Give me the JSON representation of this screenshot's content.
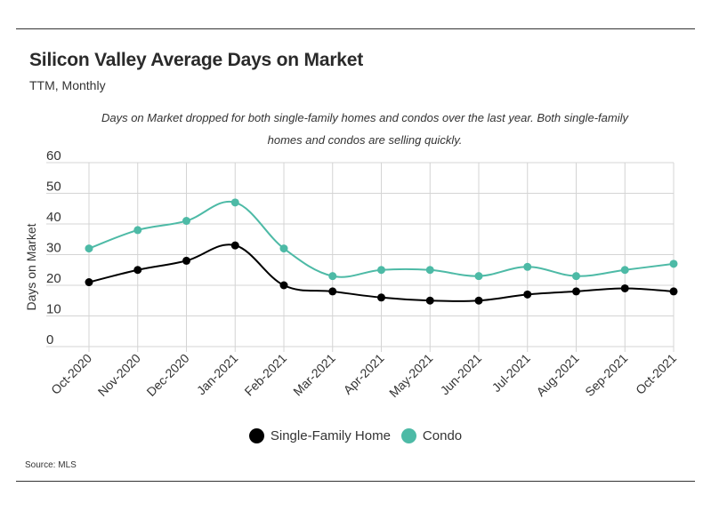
{
  "header": {
    "title": "Silicon Valley Average Days on Market",
    "subtitle": "TTM, Monthly",
    "annotation_line1": "Days on Market dropped for both single-family homes and condos over the last year. Both single-family",
    "annotation_line2": "homes and condos are selling quickly."
  },
  "footer": {
    "source": "Source:  MLS"
  },
  "colors": {
    "single_family": "#000000",
    "condo": "#4dbaa6",
    "grid": "#d4d4d4"
  },
  "chart_data": {
    "type": "line",
    "xlabel": "",
    "ylabel": "Days on Market",
    "ylim": [
      0,
      60
    ],
    "yticks": [
      0,
      10,
      20,
      30,
      40,
      50,
      60
    ],
    "grid": true,
    "legend_position": "bottom-center",
    "categories": [
      "Oct-2020",
      "Nov-2020",
      "Dec-2020",
      "Jan-2021",
      "Feb-2021",
      "Mar-2021",
      "Apr-2021",
      "May-2021",
      "Jun-2021",
      "Jul-2021",
      "Aug-2021",
      "Sep-2021",
      "Oct-2021"
    ],
    "series": [
      {
        "name": "Single-Family Home",
        "color": "#000000",
        "values": [
          21,
          25,
          28,
          33,
          20,
          18,
          16,
          15,
          15,
          17,
          18,
          19,
          18
        ]
      },
      {
        "name": "Condo",
        "color": "#4dbaa6",
        "values": [
          32,
          38,
          41,
          47,
          32,
          23,
          25,
          25,
          23,
          26,
          23,
          25,
          27
        ]
      }
    ]
  }
}
